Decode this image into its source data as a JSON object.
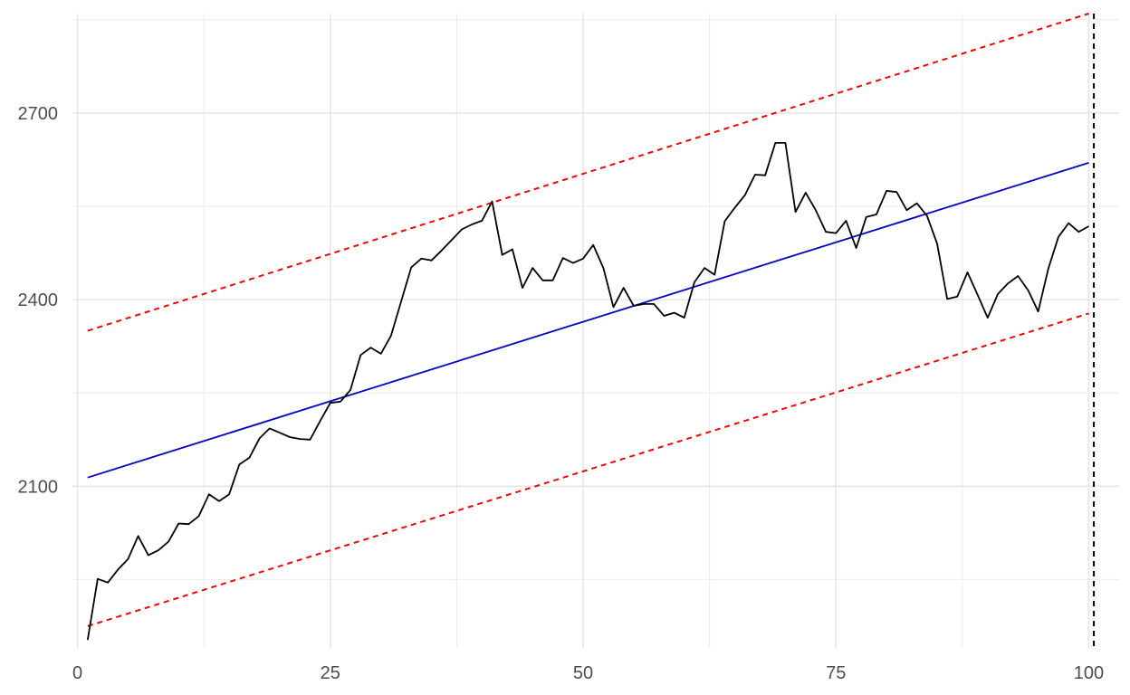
{
  "chart_data": {
    "type": "line",
    "title": "",
    "xlabel": "",
    "ylabel": "",
    "xlim": [
      -0.5,
      103
    ],
    "ylim": [
      1840,
      2860
    ],
    "x_ticks": [
      0,
      25,
      50,
      75,
      100
    ],
    "x_tick_labels": [
      "0",
      "25",
      "50",
      "75",
      "100"
    ],
    "x_minor_ticks": [
      12.5,
      37.5,
      62.5,
      87.5
    ],
    "y_ticks": [
      2100,
      2400,
      2700
    ],
    "y_tick_labels": [
      "2100",
      "2400",
      "2700"
    ],
    "y_minor_ticks": [
      1950,
      2250,
      2550,
      2850
    ],
    "grid": true,
    "vline": {
      "x": 100.5,
      "style": "dashed",
      "color": "#000000"
    },
    "series": [
      {
        "style": "solid",
        "color": "#000000",
        "x": [
          1,
          2,
          3,
          4,
          5,
          6,
          7,
          8,
          9,
          10,
          11,
          12,
          13,
          14,
          15,
          16,
          17,
          18,
          19,
          20,
          21,
          22,
          23,
          24,
          25,
          26,
          27,
          28,
          29,
          30,
          31,
          32,
          33,
          34,
          35,
          36,
          37,
          38,
          39,
          40,
          41,
          42,
          43,
          44,
          45,
          46,
          47,
          48,
          49,
          50,
          51,
          52,
          53,
          54,
          55,
          56,
          57,
          58,
          59,
          60,
          61,
          62,
          63,
          64,
          65,
          66,
          67,
          68,
          69,
          70,
          71,
          72,
          73,
          74,
          75,
          76,
          77,
          78,
          79,
          80,
          81,
          82,
          83,
          84,
          85,
          86,
          87,
          88,
          89,
          90,
          91,
          92,
          93,
          94,
          95,
          96,
          97,
          98,
          99,
          100
        ],
        "values": [
          1853,
          1951,
          1945,
          1966,
          1983,
          2020,
          1989,
          1997,
          2011,
          2040,
          2039,
          2052,
          2087,
          2076,
          2087,
          2135,
          2146,
          2177,
          2193,
          2186,
          2179,
          2176,
          2175,
          2205,
          2234,
          2236,
          2255,
          2311,
          2323,
          2313,
          2342,
          2397,
          2452,
          2466,
          2463,
          2479,
          2496,
          2513,
          2521,
          2527,
          2558,
          2472,
          2481,
          2419,
          2451,
          2431,
          2431,
          2467,
          2459,
          2466,
          2488,
          2451,
          2388,
          2419,
          2390,
          2393,
          2393,
          2374,
          2379,
          2371,
          2428,
          2451,
          2440,
          2526,
          2548,
          2568,
          2601,
          2600,
          2652,
          2652,
          2541,
          2572,
          2544,
          2509,
          2507,
          2527,
          2483,
          2533,
          2537,
          2575,
          2573,
          2544,
          2555,
          2535,
          2490,
          2401,
          2405,
          2444,
          2408,
          2371,
          2409,
          2426,
          2438,
          2415,
          2381,
          2450,
          2501,
          2523,
          2509,
          2518
        ]
      },
      {
        "style": "solid",
        "color": "#0000cc",
        "x": [
          1,
          100
        ],
        "values": [
          2114,
          2620
        ]
      },
      {
        "style": "dashed",
        "color": "#ff0000",
        "x": [
          1,
          100
        ],
        "values": [
          2350,
          2860
        ]
      },
      {
        "style": "dashed",
        "color": "#ff0000",
        "x": [
          1,
          100
        ],
        "values": [
          1875,
          2378
        ]
      }
    ]
  }
}
